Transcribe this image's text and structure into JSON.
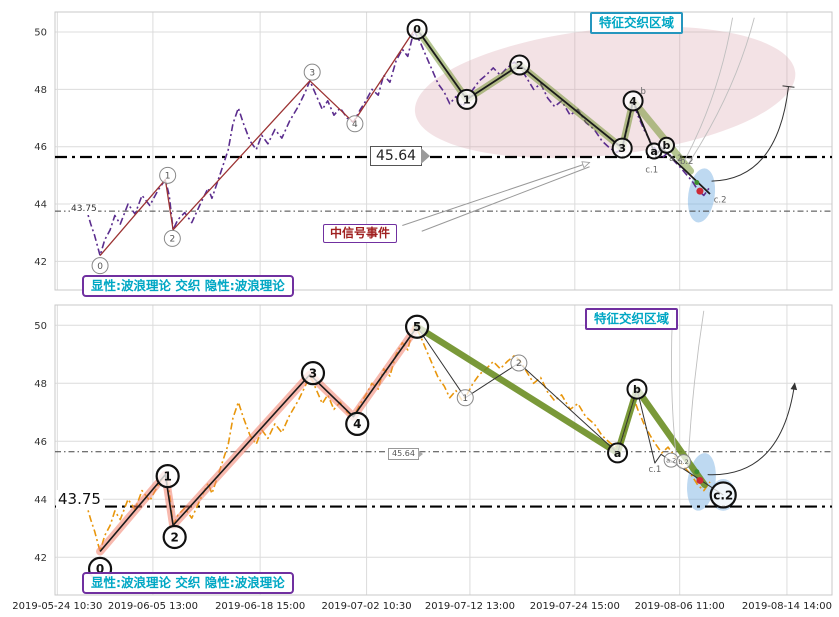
{
  "figure": {
    "bg": "#ffffff",
    "grid_color": "#dcdcdc",
    "border_color": "#c9c9c9",
    "y_ticks": [
      42,
      44,
      46,
      48,
      50
    ],
    "x_axis_labels": [
      "2019-05-24 10:30",
      "2019-06-05 13:00",
      "2019-06-18 15:00",
      "2019-07-02 10:30",
      "2019-07-12 13:00",
      "2019-07-24 15:00",
      "2019-08-06 11:00",
      "2019-08-14 14:00"
    ],
    "x_grid_f": [
      0.003,
      0.126,
      0.264,
      0.401,
      0.534,
      0.669,
      0.804,
      0.942
    ]
  },
  "price_series": [
    [
      0.039,
      43.95
    ],
    [
      0.046,
      43.3
    ],
    [
      0.051,
      42.9
    ],
    [
      0.058,
      42.2
    ],
    [
      0.064,
      42.75
    ],
    [
      0.071,
      43.1
    ],
    [
      0.077,
      43.6
    ],
    [
      0.084,
      43.3
    ],
    [
      0.094,
      44.0
    ],
    [
      0.103,
      43.65
    ],
    [
      0.112,
      44.3
    ],
    [
      0.122,
      43.95
    ],
    [
      0.133,
      44.5
    ],
    [
      0.142,
      44.85
    ],
    [
      0.147,
      44.3
    ],
    [
      0.152,
      43.1
    ],
    [
      0.158,
      43.45
    ],
    [
      0.167,
      43.7
    ],
    [
      0.176,
      43.35
    ],
    [
      0.187,
      44.0
    ],
    [
      0.197,
      44.55
    ],
    [
      0.202,
      44.2
    ],
    [
      0.212,
      45.0
    ],
    [
      0.223,
      45.9
    ],
    [
      0.229,
      46.8
    ],
    [
      0.236,
      47.35
    ],
    [
      0.242,
      46.85
    ],
    [
      0.251,
      46.2
    ],
    [
      0.259,
      45.9
    ],
    [
      0.266,
      46.4
    ],
    [
      0.274,
      46.1
    ],
    [
      0.283,
      46.6
    ],
    [
      0.292,
      46.3
    ],
    [
      0.302,
      46.9
    ],
    [
      0.313,
      47.4
    ],
    [
      0.322,
      47.9
    ],
    [
      0.328,
      48.3
    ],
    [
      0.336,
      47.8
    ],
    [
      0.344,
      47.3
    ],
    [
      0.351,
      47.6
    ],
    [
      0.359,
      47.1
    ],
    [
      0.367,
      47.35
    ],
    [
      0.376,
      47.0
    ],
    [
      0.384,
      46.85
    ],
    [
      0.393,
      47.3
    ],
    [
      0.4,
      47.6
    ],
    [
      0.408,
      48.0
    ],
    [
      0.416,
      47.8
    ],
    [
      0.423,
      48.5
    ],
    [
      0.431,
      48.25
    ],
    [
      0.439,
      49.0
    ],
    [
      0.447,
      49.4
    ],
    [
      0.454,
      49.15
    ],
    [
      0.462,
      50.05
    ],
    [
      0.47,
      49.65
    ],
    [
      0.477,
      49.2
    ],
    [
      0.485,
      48.7
    ],
    [
      0.493,
      48.2
    ],
    [
      0.501,
      47.9
    ],
    [
      0.508,
      47.5
    ],
    [
      0.516,
      47.75
    ],
    [
      0.524,
      47.4
    ],
    [
      0.53,
      47.6
    ],
    [
      0.538,
      48.0
    ],
    [
      0.546,
      48.3
    ],
    [
      0.555,
      48.5
    ],
    [
      0.564,
      48.75
    ],
    [
      0.573,
      48.5
    ],
    [
      0.582,
      48.75
    ],
    [
      0.591,
      48.95
    ],
    [
      0.598,
      48.8
    ],
    [
      0.607,
      48.4
    ],
    [
      0.616,
      48.0
    ],
    [
      0.625,
      48.2
    ],
    [
      0.634,
      47.7
    ],
    [
      0.643,
      47.4
    ],
    [
      0.652,
      47.6
    ],
    [
      0.663,
      47.1
    ],
    [
      0.673,
      47.3
    ],
    [
      0.683,
      46.85
    ],
    [
      0.694,
      46.6
    ],
    [
      0.704,
      46.2
    ],
    [
      0.714,
      45.95
    ],
    [
      0.723,
      45.8
    ],
    [
      0.73,
      45.95
    ],
    [
      0.737,
      46.7
    ],
    [
      0.744,
      47.55
    ],
    [
      0.75,
      47.1
    ],
    [
      0.758,
      46.6
    ],
    [
      0.766,
      46.2
    ],
    [
      0.773,
      45.9
    ],
    [
      0.781,
      45.6
    ],
    [
      0.789,
      45.8
    ],
    [
      0.797,
      45.5
    ],
    [
      0.804,
      45.3
    ],
    [
      0.812,
      45.05
    ],
    [
      0.82,
      44.8
    ],
    [
      0.827,
      44.5
    ],
    [
      0.835,
      44.3
    ],
    [
      0.843,
      44.6
    ]
  ],
  "chart_data": [
    {
      "type": "line",
      "panel": "top",
      "region_label": "特征交织区域",
      "legend_label": "显性:波浪理论 交织 隐性:波浪理论",
      "signal_label": "中信号事件",
      "ylim": [
        41.0,
        50.7
      ],
      "price_color": "#5b2d8e",
      "hlines": [
        {
          "price": 45.64,
          "label": "45.64",
          "weight": "bold"
        },
        {
          "price": 43.75,
          "label": "43.75",
          "weight": "thin"
        }
      ],
      "impulse": {
        "color": "#9c3333",
        "width": 1.3,
        "points": [
          [
            0.058,
            42.2
          ],
          [
            0.142,
            44.85
          ],
          [
            0.152,
            43.1
          ],
          [
            0.328,
            48.3
          ],
          [
            0.384,
            46.85
          ],
          [
            0.462,
            50.05
          ]
        ]
      },
      "overlays": [
        {
          "name": "green-band",
          "color": "rgba(107,142,35,0.5)",
          "width": 7,
          "points": [
            [
              0.466,
              50.1
            ],
            [
              0.53,
              47.65
            ],
            [
              0.598,
              48.85
            ],
            [
              0.73,
              45.95
            ],
            [
              0.744,
              47.6
            ],
            [
              0.818,
              45.15
            ]
          ]
        },
        {
          "name": "black-zigzag",
          "color": "#1a1a1a",
          "width": 1.8,
          "points": [
            [
              0.466,
              50.1
            ],
            [
              0.53,
              47.65
            ],
            [
              0.598,
              48.85
            ],
            [
              0.73,
              45.95
            ],
            [
              0.744,
              47.6
            ],
            [
              0.773,
              45.7
            ],
            [
              0.781,
              45.95
            ],
            [
              0.843,
              44.35
            ]
          ]
        }
      ],
      "wave_circles_small": [
        {
          "f": 0.058,
          "p": 41.85,
          "t": "0"
        },
        {
          "f": 0.145,
          "p": 45.0,
          "t": "1"
        },
        {
          "f": 0.151,
          "p": 42.8,
          "t": "2"
        },
        {
          "f": 0.331,
          "p": 48.6,
          "t": "3"
        },
        {
          "f": 0.386,
          "p": 46.8,
          "t": "4"
        }
      ],
      "wave_circles_bold": [
        {
          "f": 0.466,
          "p": 50.1,
          "t": "0",
          "r": 9.5
        },
        {
          "f": 0.53,
          "p": 47.65,
          "t": "1",
          "r": 9.5
        },
        {
          "f": 0.598,
          "p": 48.85,
          "t": "2",
          "r": 9.5
        },
        {
          "f": 0.73,
          "p": 45.95,
          "t": "3",
          "r": 9.5
        },
        {
          "f": 0.744,
          "p": 47.6,
          "t": "4",
          "r": 9.5
        },
        {
          "f": 0.771,
          "p": 45.85,
          "t": "a",
          "r": 7.5
        },
        {
          "f": 0.787,
          "p": 46.05,
          "t": "b",
          "r": 7.5
        }
      ],
      "text_labels": [
        {
          "f": 0.757,
          "p": 47.95,
          "t": "b"
        },
        {
          "f": 0.768,
          "p": 45.2,
          "t": "c.1"
        },
        {
          "f": 0.799,
          "p": 45.6,
          "t": "a.2"
        },
        {
          "f": 0.813,
          "p": 45.5,
          "t": "b.2"
        },
        {
          "f": 0.856,
          "p": 44.15,
          "t": "c.2"
        }
      ],
      "dots": [
        {
          "f": 0.83,
          "p": 44.45,
          "color": "#cc2a36",
          "r": 3.5
        },
        {
          "f": 0.826,
          "p": 44.75,
          "color": "#3f8f2f",
          "r": 2.5
        }
      ],
      "ellipses": [
        {
          "cf": 0.708,
          "cp": 47.9,
          "rf": 0.246,
          "rp": 2.2,
          "rot": -6,
          "fill": "rgba(214,160,170,0.30)"
        },
        {
          "cf": 0.832,
          "cp": 44.3,
          "rf": 0.017,
          "rp": 0.95,
          "rot": 8,
          "fill": "rgba(110,170,225,0.45)"
        }
      ],
      "arrows": [
        {
          "x1": 0.447,
          "y1": 43.25,
          "x2": 0.688,
          "y2": 45.45,
          "color": "#999999",
          "width": 1,
          "head": true
        },
        {
          "x1": 0.472,
          "y1": 43.05,
          "x2": 0.688,
          "y2": 45.3,
          "color": "#999999",
          "width": 1,
          "head": false
        }
      ],
      "curves": [
        {
          "d": [
            [
              0.845,
              44.8
            ],
            [
              0.93,
              44.85
            ],
            [
              0.944,
              48.1
            ]
          ],
          "color": "#333333",
          "width": 1,
          "cap": "T"
        },
        {
          "d": [
            [
              0.81,
              45.5
            ],
            [
              0.855,
              47.8
            ],
            [
              0.872,
              50.5
            ]
          ],
          "color": "#bfbfbf",
          "width": 0.9
        },
        {
          "d": [
            [
              0.815,
              45.4
            ],
            [
              0.875,
              47.9
            ],
            [
              0.9,
              50.5
            ]
          ],
          "color": "#bfbfbf",
          "width": 0.9
        }
      ]
    },
    {
      "type": "line",
      "panel": "bottom",
      "region_label": "特征交织区域",
      "legend_label": "显性:波浪理论 交织 隐性:波浪理论",
      "ylim": [
        40.7,
        50.7
      ],
      "price_color": "#e8960c",
      "hlines": [
        {
          "price": 43.75,
          "label": "43.75",
          "weight": "bold"
        },
        {
          "price": 45.64,
          "label": "45.64",
          "weight": "thin"
        }
      ],
      "impulse": {
        "color": "#1a1a1a",
        "width": 1.6,
        "points": [
          [
            0.058,
            42.2
          ],
          [
            0.142,
            44.85
          ],
          [
            0.152,
            43.1
          ],
          [
            0.328,
            48.3
          ],
          [
            0.384,
            46.85
          ],
          [
            0.466,
            49.95
          ]
        ]
      },
      "overlays": [
        {
          "name": "salmon-band",
          "color": "rgba(243,128,108,0.55)",
          "width": 8,
          "points": [
            [
              0.058,
              42.2
            ],
            [
              0.142,
              44.85
            ],
            [
              0.152,
              43.1
            ],
            [
              0.328,
              48.3
            ],
            [
              0.384,
              46.85
            ],
            [
              0.466,
              49.95
            ]
          ]
        },
        {
          "name": "green-band",
          "color": "rgba(107,142,35,0.9)",
          "width": 6.5,
          "points": [
            [
              0.466,
              49.95
            ],
            [
              0.724,
              45.6
            ],
            [
              0.749,
              47.8
            ],
            [
              0.836,
              44.5
            ]
          ]
        },
        {
          "name": "thin-zigzag",
          "color": "#333333",
          "width": 1,
          "points": [
            [
              0.466,
              49.95
            ],
            [
              0.528,
              47.5
            ],
            [
              0.597,
              48.7
            ],
            [
              0.724,
              45.6
            ],
            [
              0.749,
              47.8
            ],
            [
              0.772,
              45.25
            ],
            [
              0.78,
              45.55
            ],
            [
              0.86,
              44.15
            ]
          ]
        }
      ],
      "wave_circles_small": [
        {
          "f": 0.528,
          "p": 47.5,
          "t": "1"
        },
        {
          "f": 0.597,
          "p": 48.7,
          "t": "2"
        },
        {
          "f": 0.793,
          "p": 45.35,
          "t": "a.2",
          "r": 7
        },
        {
          "f": 0.809,
          "p": 45.3,
          "t": "b.2",
          "r": 7
        }
      ],
      "wave_circles_bold": [
        {
          "f": 0.058,
          "p": 41.6,
          "t": "0",
          "r": 11
        },
        {
          "f": 0.145,
          "p": 44.8,
          "t": "1",
          "r": 11
        },
        {
          "f": 0.154,
          "p": 42.7,
          "t": "2",
          "r": 11
        },
        {
          "f": 0.332,
          "p": 48.35,
          "t": "3",
          "r": 11
        },
        {
          "f": 0.389,
          "p": 46.6,
          "t": "4",
          "r": 11
        },
        {
          "f": 0.466,
          "p": 49.95,
          "t": "5",
          "r": 11
        },
        {
          "f": 0.724,
          "p": 45.6,
          "t": "a",
          "r": 9.5
        },
        {
          "f": 0.749,
          "p": 47.8,
          "t": "b",
          "r": 9.5
        },
        {
          "f": 0.86,
          "p": 44.15,
          "t": "c.2",
          "r": 12.5
        }
      ],
      "text_labels": [
        {
          "f": 0.772,
          "p": 45.05,
          "t": "c.1"
        }
      ],
      "dots": [
        {
          "f": 0.83,
          "p": 44.65,
          "color": "#cc2a36",
          "r": 3.5
        },
        {
          "f": 0.826,
          "p": 44.95,
          "color": "#3f8f2f",
          "r": 2.5
        }
      ],
      "ellipses": [
        {
          "cf": 0.832,
          "cp": 44.6,
          "rf": 0.018,
          "rp": 1.0,
          "rot": 8,
          "fill": "rgba(110,170,225,0.45)"
        },
        {
          "cf": 0.86,
          "cp": 44.15,
          "rf": 0.016,
          "rp": 0.55,
          "rot": 0,
          "fill": "rgba(110,170,225,0.40)"
        }
      ],
      "arrows": [],
      "curves": [
        {
          "d": [
            [
              0.84,
              44.85
            ],
            [
              0.935,
              44.75
            ],
            [
              0.952,
              48.0
            ]
          ],
          "color": "#333333",
          "width": 1,
          "cap": "arrow"
        },
        {
          "d": [
            [
              0.8,
              45.35
            ],
            [
              0.79,
              47.8
            ],
            [
              0.795,
              50.5
            ]
          ],
          "color": "#bfbfbf",
          "width": 0.9
        },
        {
          "d": [
            [
              0.815,
              45.3
            ],
            [
              0.82,
              47.9
            ],
            [
              0.835,
              50.5
            ]
          ],
          "color": "#bfbfbf",
          "width": 0.9
        }
      ]
    }
  ]
}
